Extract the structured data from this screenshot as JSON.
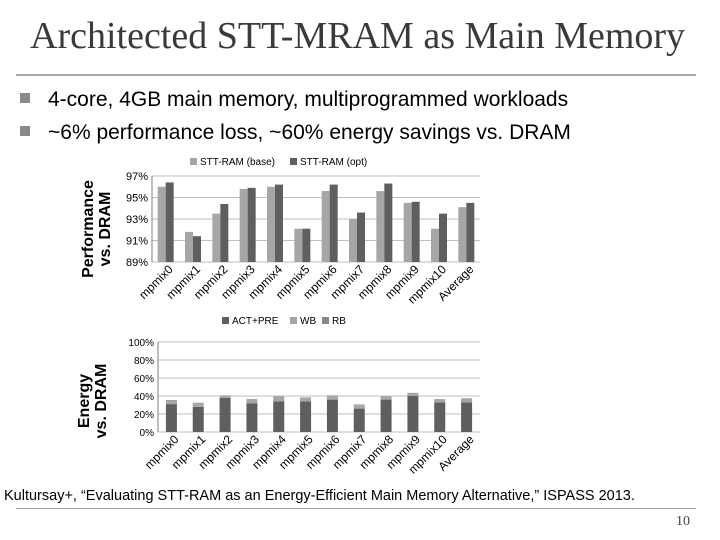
{
  "slide": {
    "title": "Architected STT-MRAM as Main Memory",
    "bullets": [
      "4-core, 4GB main memory, multiprogrammed workloads",
      "~6% performance loss, ~60% energy savings vs. DRAM"
    ],
    "citation": "Kultursay+, “Evaluating STT-RAM as an Energy-Efficient Main Memory Alternative,” ISPASS 2013.",
    "page_number": "10"
  },
  "colors": {
    "light": "#a6a6a6",
    "dark": "#5f5f5f",
    "medium": "#888888"
  },
  "chart_data": [
    {
      "type": "bar",
      "ylabel": [
        "Performance",
        "vs. DRAM"
      ],
      "categories": [
        "mpmix0",
        "mpmix1",
        "mpmix2",
        "mpmix3",
        "mpmix4",
        "mpmix5",
        "mpmix6",
        "mpmix7",
        "mpmix8",
        "mpmix9",
        "mpmix10",
        "Average"
      ],
      "series": [
        {
          "name": "STT-RAM (base)",
          "values": [
            96.0,
            91.8,
            93.5,
            95.8,
            96.0,
            92.1,
            95.6,
            93.0,
            95.6,
            94.5,
            92.1,
            94.1
          ]
        },
        {
          "name": "STT-RAM (opt)",
          "values": [
            96.4,
            91.4,
            94.4,
            95.9,
            96.2,
            92.1,
            96.2,
            93.6,
            96.3,
            94.6,
            93.5,
            94.5
          ]
        }
      ],
      "ylim": [
        89,
        97
      ],
      "yticks": [
        "89%",
        "91%",
        "93%",
        "95%",
        "97%"
      ],
      "legend_position": "top",
      "grid": true
    },
    {
      "type": "bar",
      "stacked": true,
      "ylabel": [
        "Energy",
        "vs. DRAM"
      ],
      "categories": [
        "mpmix0",
        "mpmix1",
        "mpmix2",
        "mpmix3",
        "mpmix4",
        "mpmix5",
        "mpmix6",
        "mpmix7",
        "mpmix8",
        "mpmix9",
        "mpmix10",
        "Average"
      ],
      "series": [
        {
          "name": "ACT+PRE",
          "values": [
            31,
            28,
            38,
            32,
            34,
            34,
            36,
            26,
            36,
            40,
            33,
            33
          ]
        },
        {
          "name": "WB",
          "values": [
            4,
            4,
            2,
            4,
            5,
            4,
            4,
            4,
            3,
            3,
            3,
            4
          ]
        },
        {
          "name": "RB",
          "values": [
            0.5,
            0.5,
            0.5,
            0.5,
            0.5,
            0.5,
            0.5,
            0.5,
            0.5,
            0.5,
            0.5,
            0.5
          ]
        }
      ],
      "ylim": [
        0,
        100
      ],
      "yticks": [
        "0%",
        "20%",
        "40%",
        "60%",
        "80%",
        "100%"
      ],
      "legend_position": "top",
      "grid": true
    }
  ]
}
